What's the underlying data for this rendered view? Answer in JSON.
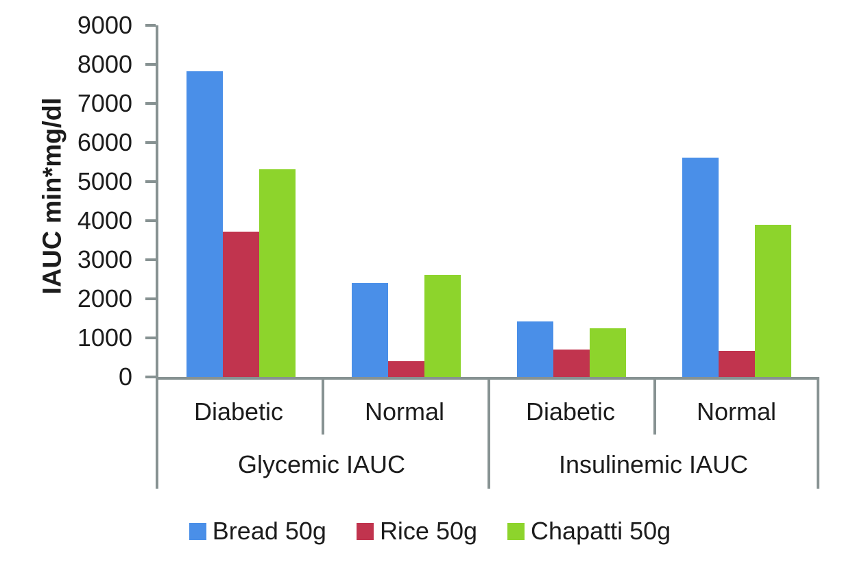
{
  "chart_data": {
    "type": "bar",
    "title": "",
    "xlabel": "",
    "ylabel": "IAUC min*mg/dl",
    "ylim": [
      0,
      9000
    ],
    "ytick_step": 1000,
    "grid": false,
    "legend_position": "bottom",
    "group_labels": [
      "Glycemic IAUC",
      "Insulinemic IAUC"
    ],
    "categories": [
      "Diabetic",
      "Normal",
      "Diabetic",
      "Normal"
    ],
    "series": [
      {
        "name": "Bread 50g",
        "color": "#4a8fe8",
        "values": [
          7820,
          2400,
          1420,
          5610
        ]
      },
      {
        "name": "Rice 50g",
        "color": "#c1344e",
        "values": [
          3720,
          410,
          700,
          670
        ]
      },
      {
        "name": "Chapatti 50g",
        "color": "#8dd42c",
        "values": [
          5320,
          2620,
          1250,
          3900
        ]
      }
    ]
  },
  "colors": {
    "axis": "#879292",
    "text": "#1c1c1c",
    "background": "#ffffff"
  }
}
